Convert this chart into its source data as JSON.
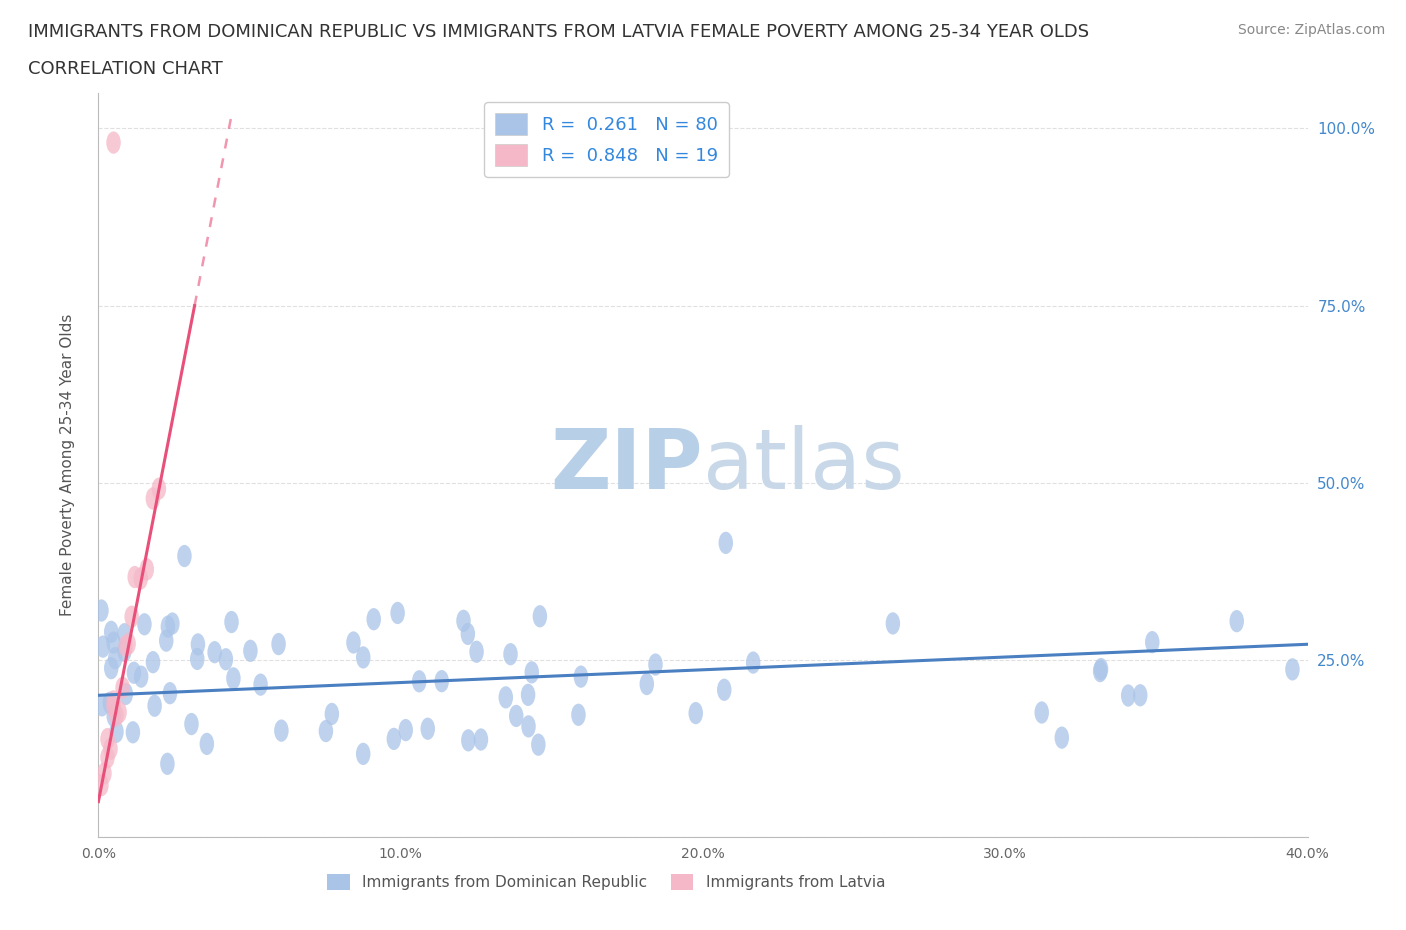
{
  "title_line1": "IMMIGRANTS FROM DOMINICAN REPUBLIC VS IMMIGRANTS FROM LATVIA FEMALE POVERTY AMONG 25-34 YEAR OLDS",
  "title_line2": "CORRELATION CHART",
  "source_text": "Source: ZipAtlas.com",
  "ylabel": "Female Poverty Among 25-34 Year Olds",
  "watermark": "ZIPatlas",
  "legend_r1": "R =  0.261   N = 80",
  "legend_r2": "R =  0.848   N = 19",
  "blue_color": "#aac4e8",
  "blue_line_color": "#4a7fc1",
  "pink_color": "#f5b8c8",
  "pink_line_color": "#e8507a",
  "xmin": 0.0,
  "xmax": 40.0,
  "ymin": 0.0,
  "ymax": 105.0,
  "yticks_right": [
    0.0,
    25.0,
    50.0,
    75.0,
    100.0
  ],
  "ytick_labels_right": [
    "",
    "25.0%",
    "50.0%",
    "75.0%",
    "100.0%"
  ],
  "xticks": [
    0,
    10,
    20,
    30,
    40
  ],
  "xtick_labels": [
    "0.0%",
    "10.0%",
    "20.0%",
    "30.0%",
    "40.0%"
  ],
  "grid_color": "#e0e0e0",
  "title_fontsize": 13,
  "subtitle_fontsize": 13,
  "axis_label_fontsize": 11,
  "source_fontsize": 10,
  "watermark_color": "#ccdcee",
  "background_color": "#ffffff",
  "blue_line_y0": 20.0,
  "blue_line_slope": 0.18,
  "pink_line_y0": 5.0,
  "pink_line_slope": 22.0
}
